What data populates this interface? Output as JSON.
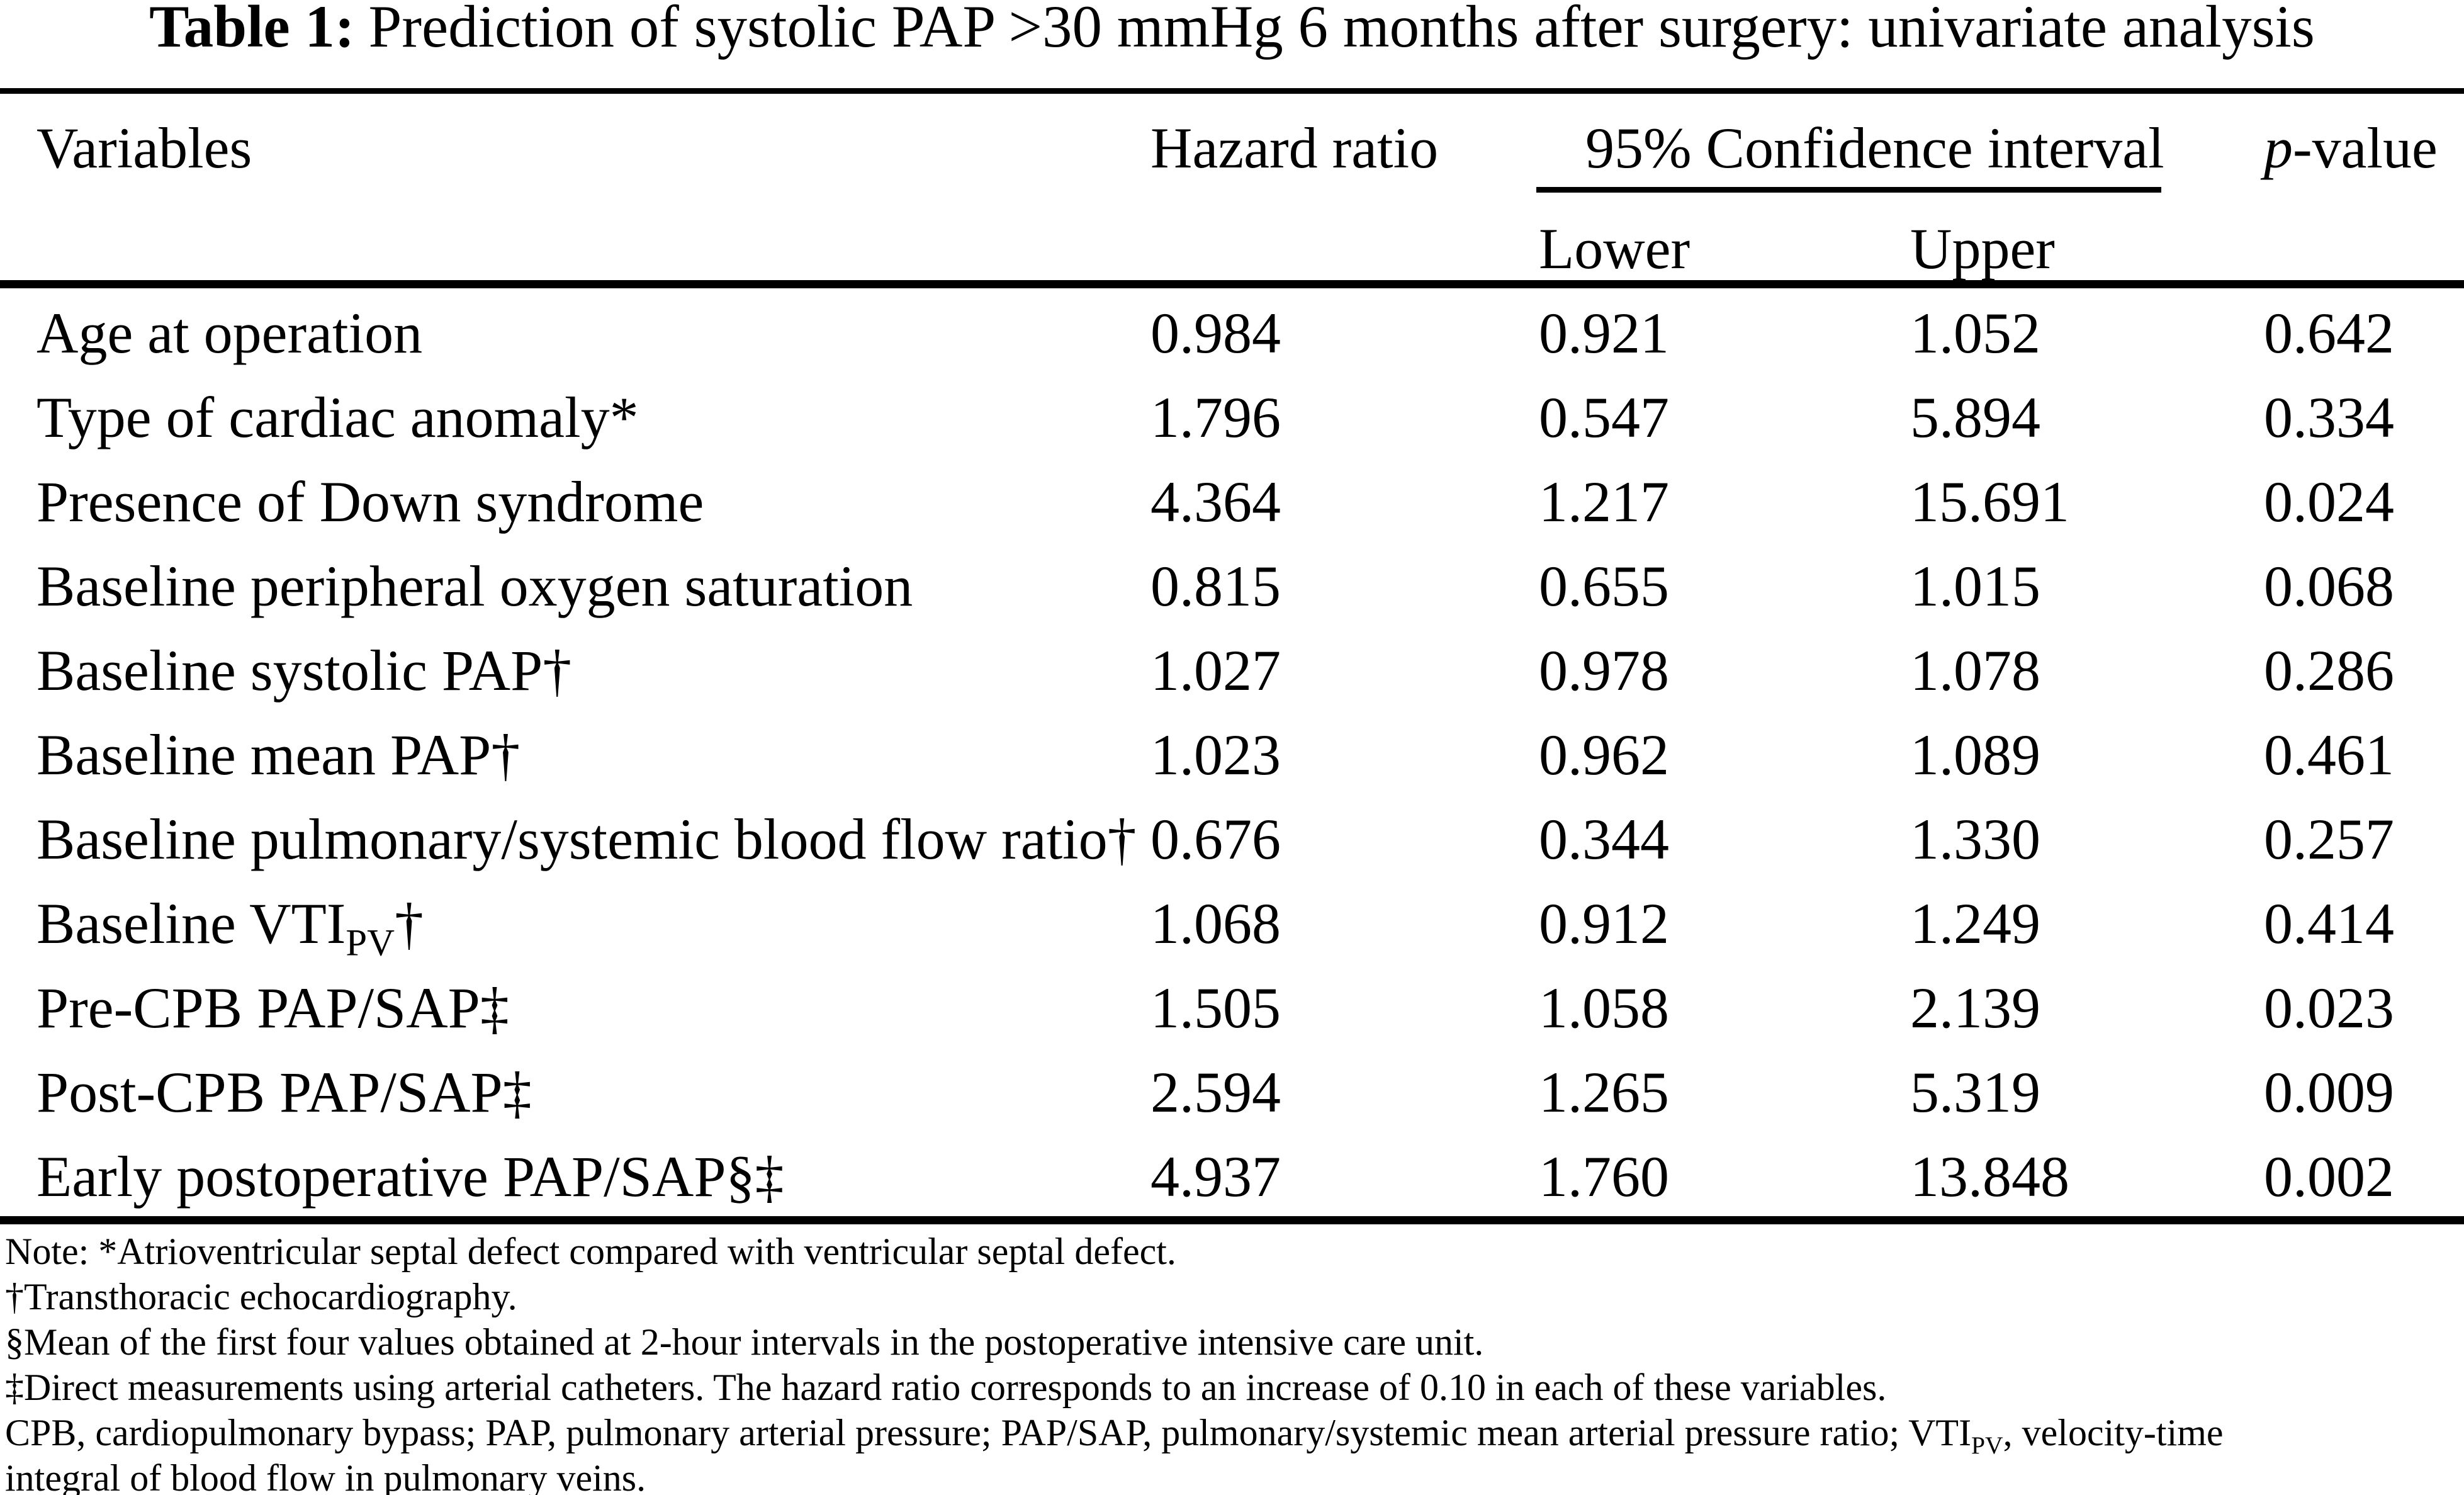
{
  "colors": {
    "text": "#000000",
    "background": "#ffffff",
    "rule": "#000000"
  },
  "title": {
    "label": "Table 1:",
    "text": "Prediction of systolic PAP >30 mmHg 6 months after surgery: univariate analysis"
  },
  "header": {
    "variables": "Variables",
    "hazard_ratio": "Hazard ratio",
    "confidence_interval": "95% Confidence interval",
    "p_italic": "p",
    "p_rest": "-value",
    "ci_lower": "Lower",
    "ci_upper": "Upper"
  },
  "table": {
    "rows": [
      {
        "variable": "Age at operation",
        "sub": "",
        "suffix": "",
        "hazard_ratio": "0.984",
        "ci_lower": "0.921",
        "ci_upper": "1.052",
        "p_value": "0.642"
      },
      {
        "variable": "Type of cardiac anomaly*",
        "sub": "",
        "suffix": "",
        "hazard_ratio": "1.796",
        "ci_lower": "0.547",
        "ci_upper": "5.894",
        "p_value": "0.334"
      },
      {
        "variable": "Presence of Down syndrome",
        "sub": "",
        "suffix": "",
        "hazard_ratio": "4.364",
        "ci_lower": "1.217",
        "ci_upper": "15.691",
        "p_value": "0.024"
      },
      {
        "variable": "Baseline peripheral oxygen saturation",
        "sub": "",
        "suffix": "",
        "hazard_ratio": "0.815",
        "ci_lower": "0.655",
        "ci_upper": "1.015",
        "p_value": "0.068"
      },
      {
        "variable": "Baseline systolic PAP†",
        "sub": "",
        "suffix": "",
        "hazard_ratio": "1.027",
        "ci_lower": "0.978",
        "ci_upper": "1.078",
        "p_value": "0.286"
      },
      {
        "variable": "Baseline mean PAP†",
        "sub": "",
        "suffix": "",
        "hazard_ratio": "1.023",
        "ci_lower": "0.962",
        "ci_upper": "1.089",
        "p_value": "0.461"
      },
      {
        "variable": "Baseline pulmonary/systemic blood flow ratio†",
        "sub": "",
        "suffix": "",
        "hazard_ratio": "0.676",
        "ci_lower": "0.344",
        "ci_upper": "1.330",
        "p_value": "0.257"
      },
      {
        "variable": "Baseline VTI",
        "sub": "PV",
        "suffix": "†",
        "hazard_ratio": "1.068",
        "ci_lower": "0.912",
        "ci_upper": "1.249",
        "p_value": "0.414"
      },
      {
        "variable": "Pre-CPB PAP/SAP‡",
        "sub": "",
        "suffix": "",
        "hazard_ratio": "1.505",
        "ci_lower": "1.058",
        "ci_upper": "2.139",
        "p_value": "0.023"
      },
      {
        "variable": "Post-CPB PAP/SAP‡",
        "sub": "",
        "suffix": "",
        "hazard_ratio": "2.594",
        "ci_lower": "1.265",
        "ci_upper": "5.319",
        "p_value": "0.009"
      },
      {
        "variable": "Early postoperative PAP/SAP§‡",
        "sub": "",
        "suffix": "",
        "hazard_ratio": "4.937",
        "ci_lower": "1.760",
        "ci_upper": "13.848",
        "p_value": "0.002"
      }
    ]
  },
  "footnotes": {
    "line1": "Note: *Atrioventricular septal defect compared with ventricular septal defect.",
    "line2": "†Transthoracic echocardiography.",
    "line3": "§Mean of the first four values obtained at 2-hour intervals in the postoperative intensive care unit.",
    "line4": "‡Direct measurements using arterial catheters. The hazard ratio corresponds to an increase of 0.10 in each of these variables.",
    "line5_pre": "CPB, cardiopulmonary bypass; PAP, pulmonary arterial pressure; PAP/SAP, pulmonary/systemic mean arterial pressure ratio; VTI",
    "line5_sub": "PV",
    "line5_post": ", velocity-time",
    "line6": "integral of blood flow in pulmonary veins."
  }
}
